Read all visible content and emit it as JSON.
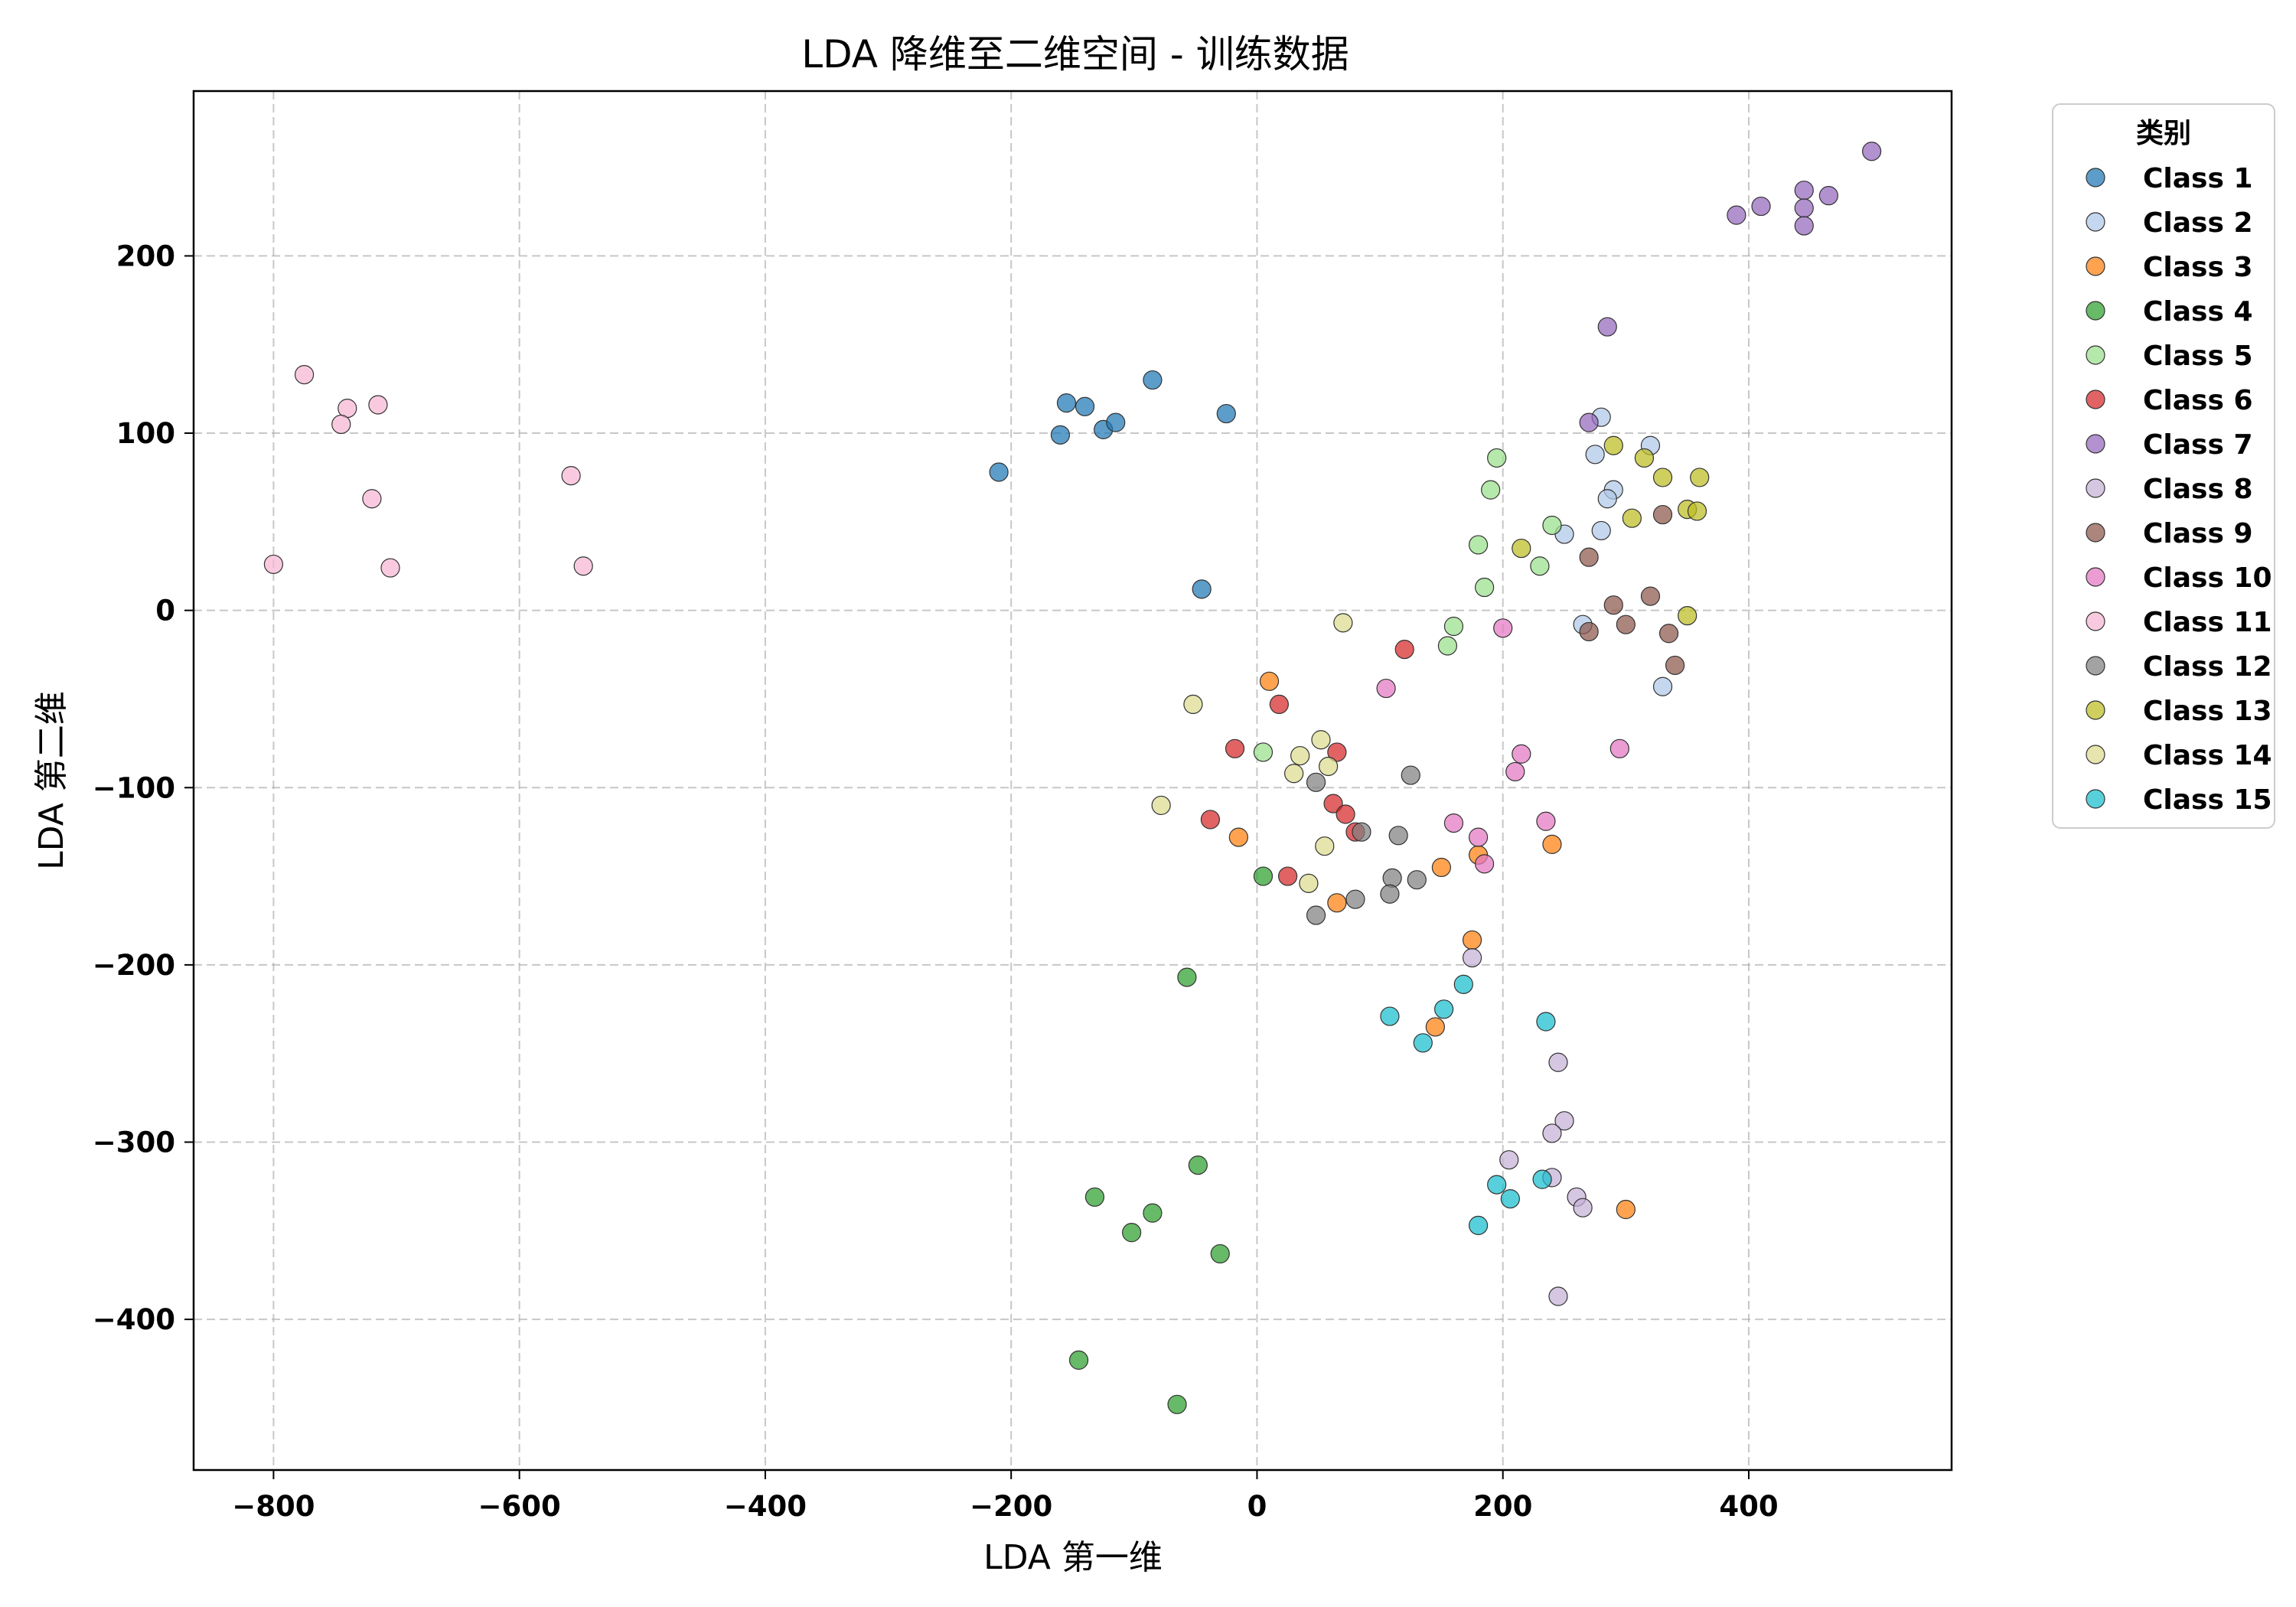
{
  "chart_data": {
    "type": "scatter",
    "title": "LDA 降维至二维空间 - 训练数据",
    "xlabel": "LDA 第一维",
    "ylabel": "LDA 第二维",
    "xlim": [
      -865,
      565
    ],
    "ylim": [
      -485,
      293
    ],
    "xticks": [
      -800,
      -600,
      -400,
      -200,
      0,
      200,
      400
    ],
    "yticks": [
      -400,
      -300,
      -200,
      -100,
      0,
      100,
      200
    ],
    "grid": true,
    "legend_title": "类别",
    "legend_position": "outside-top-right",
    "series": [
      {
        "name": "Class 1",
        "color": "#1f77b4",
        "points": [
          [
            -210,
            78
          ],
          [
            -160,
            99
          ],
          [
            -155,
            117
          ],
          [
            -140,
            115
          ],
          [
            -125,
            102
          ],
          [
            -115,
            106
          ],
          [
            -85,
            130
          ],
          [
            -25,
            111
          ],
          [
            -45,
            12
          ]
        ]
      },
      {
        "name": "Class 2",
        "color": "#aec7e8",
        "points": [
          [
            280,
            109
          ],
          [
            275,
            88
          ],
          [
            320,
            93
          ],
          [
            290,
            68
          ],
          [
            285,
            63
          ],
          [
            250,
            43
          ],
          [
            280,
            45
          ],
          [
            265,
            -8
          ],
          [
            330,
            -43
          ]
        ]
      },
      {
        "name": "Class 3",
        "color": "#ff7f0e",
        "points": [
          [
            10,
            -40
          ],
          [
            -15,
            -128
          ],
          [
            65,
            -165
          ],
          [
            180,
            -138
          ],
          [
            150,
            -145
          ],
          [
            175,
            -186
          ],
          [
            145,
            -235
          ],
          [
            240,
            -132
          ],
          [
            300,
            -338
          ]
        ]
      },
      {
        "name": "Class 4",
        "color": "#2ca02c",
        "points": [
          [
            5,
            -150
          ],
          [
            -57,
            -207
          ],
          [
            -48,
            -313
          ],
          [
            -132,
            -331
          ],
          [
            -85,
            -340
          ],
          [
            -102,
            -351
          ],
          [
            -30,
            -363
          ],
          [
            -145,
            -423
          ],
          [
            -65,
            -448
          ]
        ]
      },
      {
        "name": "Class 5",
        "color": "#98df8a",
        "points": [
          [
            195,
            86
          ],
          [
            190,
            68
          ],
          [
            240,
            48
          ],
          [
            180,
            37
          ],
          [
            230,
            25
          ],
          [
            185,
            13
          ],
          [
            160,
            -9
          ],
          [
            155,
            -20
          ],
          [
            5,
            -80
          ]
        ]
      },
      {
        "name": "Class 6",
        "color": "#d62728",
        "points": [
          [
            120,
            -22
          ],
          [
            18,
            -53
          ],
          [
            -18,
            -78
          ],
          [
            65,
            -80
          ],
          [
            -38,
            -118
          ],
          [
            62,
            -109
          ],
          [
            72,
            -115
          ],
          [
            80,
            -125
          ],
          [
            25,
            -150
          ]
        ]
      },
      {
        "name": "Class 7",
        "color": "#9467bd",
        "points": [
          [
            500,
            259
          ],
          [
            465,
            234
          ],
          [
            445,
            237
          ],
          [
            445,
            227
          ],
          [
            410,
            228
          ],
          [
            390,
            223
          ],
          [
            445,
            217
          ],
          [
            285,
            160
          ],
          [
            270,
            106
          ]
        ]
      },
      {
        "name": "Class 8",
        "color": "#c5b0d5",
        "points": [
          [
            175,
            -196
          ],
          [
            245,
            -255
          ],
          [
            250,
            -288
          ],
          [
            240,
            -295
          ],
          [
            205,
            -310
          ],
          [
            240,
            -320
          ],
          [
            260,
            -331
          ],
          [
            265,
            -337
          ],
          [
            245,
            -387
          ]
        ]
      },
      {
        "name": "Class 9",
        "color": "#8c564b",
        "points": [
          [
            330,
            54
          ],
          [
            270,
            30
          ],
          [
            320,
            8
          ],
          [
            290,
            3
          ],
          [
            270,
            -12
          ],
          [
            300,
            -8
          ],
          [
            335,
            -13
          ],
          [
            340,
            -31
          ]
        ]
      },
      {
        "name": "Class 10",
        "color": "#e377c2",
        "points": [
          [
            200,
            -10
          ],
          [
            105,
            -44
          ],
          [
            215,
            -81
          ],
          [
            210,
            -91
          ],
          [
            295,
            -78
          ],
          [
            235,
            -119
          ],
          [
            160,
            -120
          ],
          [
            180,
            -128
          ],
          [
            185,
            -143
          ]
        ]
      },
      {
        "name": "Class 11",
        "color": "#f7b6d2",
        "points": [
          [
            -775,
            133
          ],
          [
            -740,
            114
          ],
          [
            -715,
            116
          ],
          [
            -745,
            105
          ],
          [
            -558,
            76
          ],
          [
            -720,
            63
          ],
          [
            -800,
            26
          ],
          [
            -705,
            24
          ],
          [
            -548,
            25
          ]
        ]
      },
      {
        "name": "Class 12",
        "color": "#7f7f7f",
        "points": [
          [
            125,
            -93
          ],
          [
            48,
            -97
          ],
          [
            85,
            -125
          ],
          [
            115,
            -127
          ],
          [
            110,
            -151
          ],
          [
            130,
            -152
          ],
          [
            108,
            -160
          ],
          [
            80,
            -163
          ],
          [
            48,
            -172
          ]
        ]
      },
      {
        "name": "Class 13",
        "color": "#bcbd22",
        "points": [
          [
            290,
            93
          ],
          [
            315,
            86
          ],
          [
            330,
            75
          ],
          [
            360,
            75
          ],
          [
            305,
            52
          ],
          [
            350,
            57
          ],
          [
            358,
            56
          ],
          [
            215,
            35
          ],
          [
            350,
            -3
          ]
        ]
      },
      {
        "name": "Class 14",
        "color": "#dbdb8d",
        "points": [
          [
            70,
            -7
          ],
          [
            -52,
            -53
          ],
          [
            52,
            -73
          ],
          [
            35,
            -82
          ],
          [
            30,
            -92
          ],
          [
            58,
            -88
          ],
          [
            -78,
            -110
          ],
          [
            55,
            -133
          ],
          [
            42,
            -154
          ]
        ]
      },
      {
        "name": "Class 15",
        "color": "#17becf",
        "points": [
          [
            235,
            -232
          ],
          [
            108,
            -229
          ],
          [
            152,
            -225
          ],
          [
            168,
            -211
          ],
          [
            135,
            -244
          ],
          [
            195,
            -324
          ],
          [
            232,
            -321
          ],
          [
            206,
            -332
          ],
          [
            180,
            -347
          ]
        ]
      }
    ]
  }
}
